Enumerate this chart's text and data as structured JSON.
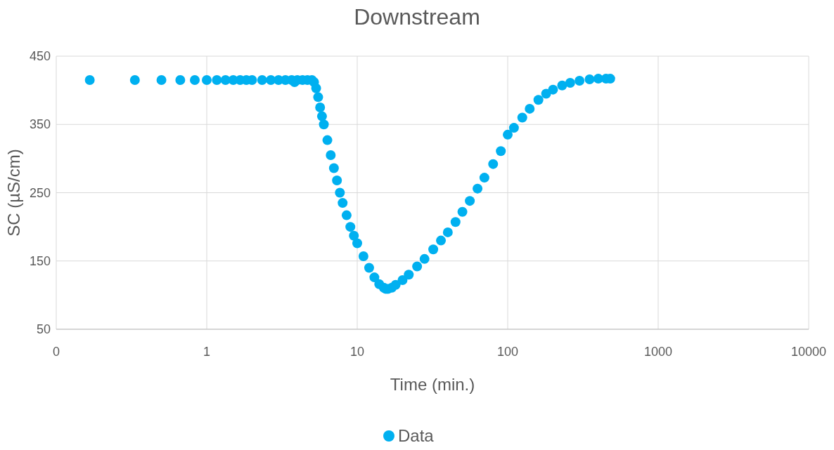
{
  "chart_data": {
    "type": "scatter",
    "title": "Downstream",
    "xlabel": "Time (min.)",
    "ylabel": "SC (µS/cm)",
    "log": "x",
    "xlim": [
      0.1,
      10000
    ],
    "xticks": [
      {
        "value": 0.1,
        "label": "0"
      },
      1,
      10,
      100,
      1000,
      10000
    ],
    "ylim": [
      50,
      450
    ],
    "yticks": [
      50,
      150,
      250,
      350,
      450
    ],
    "grid": true,
    "legend": "bottom",
    "marker": "circle",
    "series": [
      {
        "name": "Data",
        "color": "#00b0f0",
        "x": [
          0.167,
          0.333,
          0.5,
          0.667,
          0.833,
          1,
          1.167,
          1.333,
          1.5,
          1.667,
          1.833,
          2,
          2.333,
          2.667,
          3,
          3.333,
          3.667,
          3.833,
          4,
          4.333,
          4.667,
          5,
          5.167,
          5.333,
          5.5,
          5.667,
          5.833,
          6,
          6.333,
          6.667,
          7,
          7.333,
          7.667,
          8,
          8.5,
          9,
          9.5,
          10,
          11,
          12,
          13,
          14,
          15,
          15.5,
          16,
          17,
          18,
          20,
          22,
          25,
          28,
          32,
          36,
          40,
          45,
          50,
          56,
          63,
          70,
          80,
          90,
          100,
          110,
          125,
          140,
          160,
          180,
          200,
          230,
          260,
          300,
          350,
          400,
          450,
          480
        ],
        "values": [
          415,
          415,
          415,
          415,
          415,
          415,
          415,
          415,
          415,
          415,
          415,
          415,
          415,
          415,
          415,
          415,
          415,
          412,
          415,
          415,
          415,
          415,
          412,
          403,
          390,
          375,
          362,
          350,
          327,
          305,
          286,
          268,
          250,
          235,
          217,
          200,
          187,
          176,
          157,
          140,
          126,
          116,
          111,
          109,
          109,
          111,
          115,
          122,
          130,
          142,
          153,
          167,
          180,
          192,
          207,
          222,
          238,
          256,
          272,
          292,
          311,
          335,
          345,
          360,
          373,
          386,
          395,
          401,
          407,
          411,
          414,
          416,
          417,
          417,
          417
        ]
      }
    ]
  }
}
